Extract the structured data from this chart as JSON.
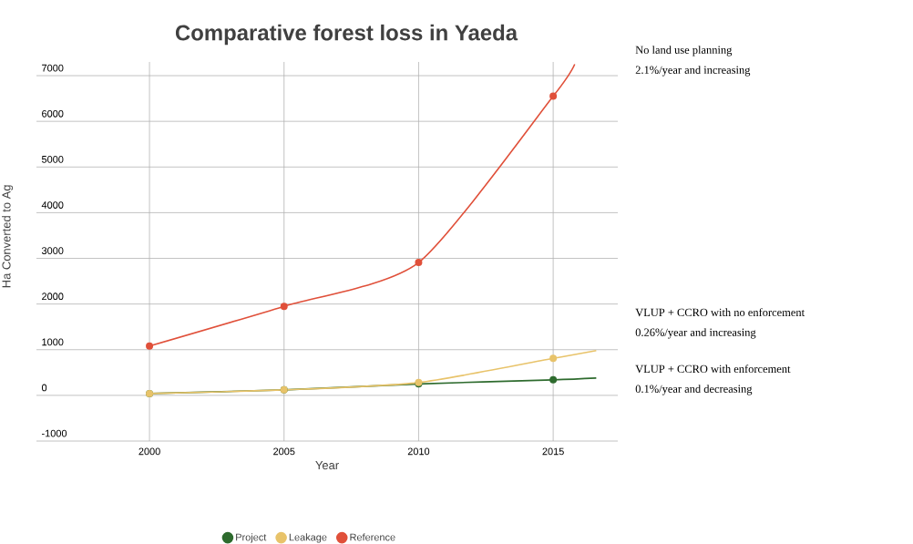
{
  "chart_data": {
    "type": "line",
    "title": "Comparative forest loss in Yaeda",
    "xlabel": "Year",
    "ylabel": "Ha Converted to Ag",
    "xlim": [
      1995.8,
      2017.4
    ],
    "xticks": [
      2000,
      2005,
      2010,
      2015
    ],
    "ylim": [
      -1000,
      7300
    ],
    "yticks": [
      -1000,
      0,
      1000,
      2000,
      3000,
      4000,
      5000,
      6000,
      7000
    ],
    "grid": true,
    "legend": "bottom",
    "marker": "circle",
    "line_style": "solid",
    "series": [
      {
        "name": "Project",
        "color": "#2e6b2e",
        "x": [
          2000,
          2005,
          2010,
          2015,
          2016.6
        ],
        "values": [
          40,
          120,
          250,
          340,
          380
        ]
      },
      {
        "name": "Leakage",
        "color": "#e8c36a",
        "x": [
          2000,
          2005,
          2010,
          2015,
          2016.6
        ],
        "values": [
          40,
          120,
          280,
          810,
          980
        ]
      },
      {
        "name": "Reference",
        "color": "#e0503a",
        "x": [
          2000,
          2005,
          2010,
          2015,
          2015.8
        ],
        "values": [
          1080,
          1950,
          2910,
          6550,
          7250
        ]
      }
    ],
    "annotations": [
      "No land use planning",
      "2.1%/year and increasing",
      "VLUP + CCRO with no enforcement",
      "0.26%/year and increasing",
      "VLUP + CCRO with enforcement",
      "0.1%/year and decreasing"
    ]
  }
}
